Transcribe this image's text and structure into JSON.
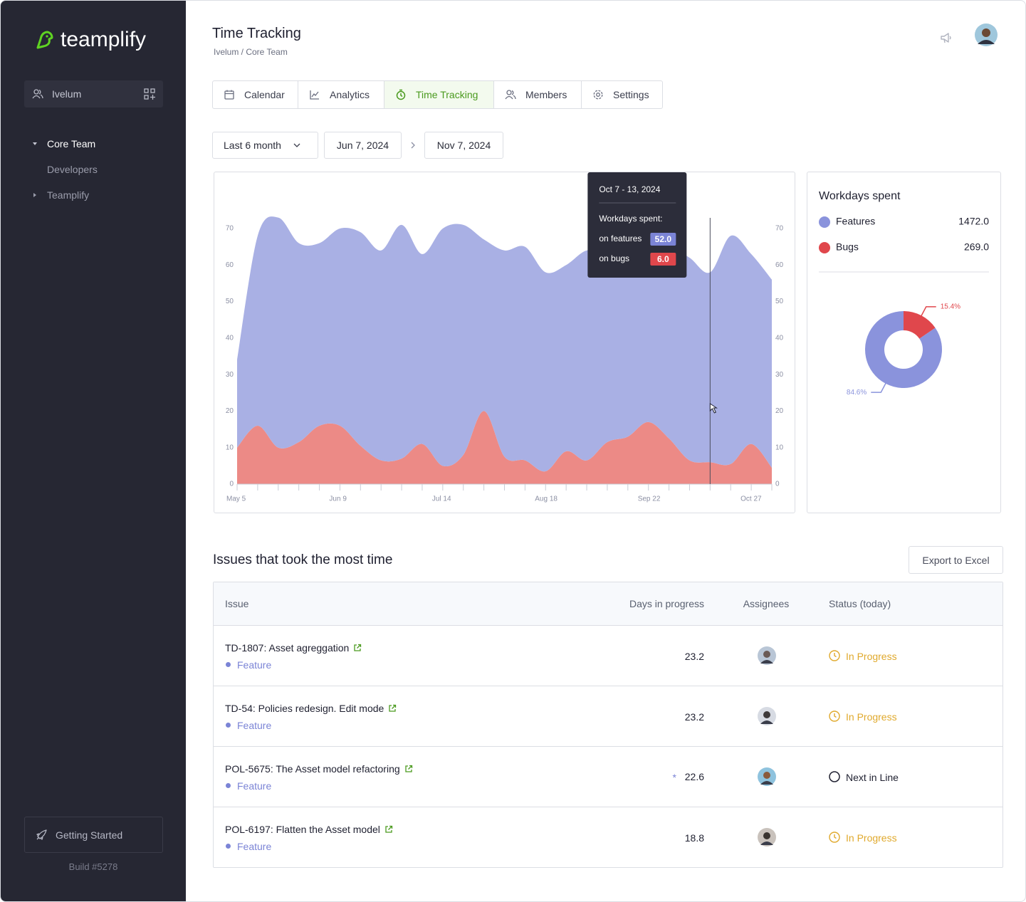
{
  "sidebar": {
    "logo": "teamplify",
    "workspace": "Ivelum",
    "tree": [
      "Core Team",
      "Developers",
      "Teamplify"
    ],
    "footer_button": "Getting Started",
    "build": "Build #5278"
  },
  "header": {
    "title": "Time Tracking",
    "breadcrumb": "Ivelum / Core Team"
  },
  "tabs": {
    "items": [
      "Calendar",
      "Analytics",
      "Time Tracking",
      "Members",
      "Settings"
    ],
    "active": 2
  },
  "filters": {
    "range": "Last 6 month",
    "from": "Jun 7, 2024",
    "to": "Nov 7, 2024"
  },
  "chart_data": [
    {
      "type": "area",
      "stacked": true,
      "categories": [
        "May 5",
        null,
        null,
        null,
        null,
        "Jun 9",
        null,
        null,
        null,
        null,
        "Jul 14",
        null,
        null,
        null,
        null,
        "Aug 18",
        null,
        null,
        null,
        null,
        "Sep 22",
        null,
        null,
        null,
        null,
        "Oct 27",
        null
      ],
      "series": [
        {
          "color": "#ec8a86",
          "values": [
            10,
            16,
            10,
            11.5,
            16,
            16,
            10.5,
            6.5,
            7,
            11,
            5,
            8,
            20,
            7.5,
            6.5,
            3.5,
            9,
            6.5,
            11.5,
            13,
            17,
            12.5,
            6.5,
            6,
            5.5,
            11,
            4.5
          ]
        },
        {
          "color": "#a9b0e4",
          "values": [
            24,
            52,
            63,
            54.5,
            50,
            54,
            58.5,
            57.5,
            64,
            52,
            65,
            63,
            47,
            56.5,
            58.5,
            54.5,
            51,
            57.5,
            51.5,
            52,
            49,
            52.5,
            55.5,
            52,
            62.5,
            52,
            51.5
          ]
        }
      ],
      "ylim": [
        0,
        75
      ],
      "yticks": [
        0,
        10,
        20,
        30,
        40,
        50,
        60,
        70
      ],
      "y2lim": [
        0,
        75
      ],
      "y2ticks": [
        0,
        10,
        20,
        30,
        40,
        50,
        60,
        70
      ],
      "tooltip": {
        "title": "Oct 7 - 13, 2024",
        "heading": "Workdays spent:",
        "point": 23,
        "rows": [
          {
            "label": "on features",
            "value_label": "52.0",
            "color": "#7b84d6"
          },
          {
            "label": "on bugs",
            "value_label": "6.0",
            "color": "#e0474c"
          }
        ]
      }
    },
    {
      "type": "donut",
      "title": "Workdays spent",
      "categories": [
        "Features",
        "Bugs"
      ],
      "values": [
        1472,
        269
      ],
      "value_labels": [
        "1472.0",
        "269.0"
      ],
      "percent_labels": [
        "84.6%",
        "15.4%"
      ],
      "colors": [
        "#8a93dc",
        "#e0474c"
      ]
    }
  ],
  "table": {
    "title": "Issues that took the most time",
    "export_button": "Export to Excel",
    "columns": [
      "Issue",
      "Days in progress",
      "Assignees",
      "Status (today)"
    ],
    "rows": [
      {
        "issue": "TD-1807: Asset agreggation",
        "type": "Feature",
        "days": 23.2,
        "status": "In Progress",
        "status_icon": "clock",
        "status_color": "#e0a92c"
      },
      {
        "issue": "TD-54: Policies redesign. Edit mode",
        "type": "Feature",
        "days": 23.2,
        "status": "In Progress",
        "status_icon": "clock",
        "status_color": "#e0a92c"
      },
      {
        "issue": "POL-5675: The Asset model refactoring",
        "type": "Feature",
        "flag": "*",
        "days": 22.6,
        "status": "Next in Line",
        "status_icon": "circle",
        "status_color": "#1f2030"
      },
      {
        "issue": "POL-6197: Flatten the Asset model",
        "type": "Feature",
        "days": 18.8,
        "status": "In Progress",
        "status_icon": "clock",
        "status_color": "#e0a92c"
      }
    ]
  }
}
